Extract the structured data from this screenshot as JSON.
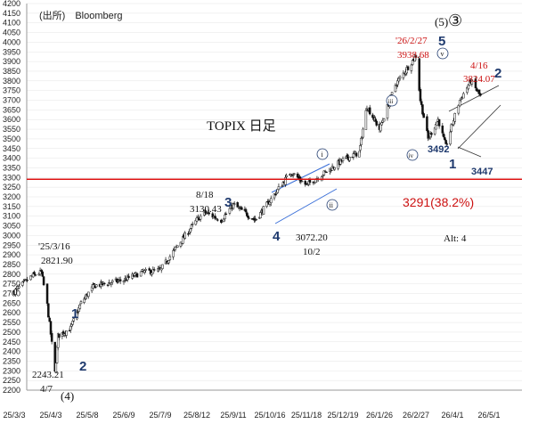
{
  "source": "(出所)　Bloomberg",
  "colors": {
    "axis": "#9a9a9a",
    "grid": "#e4e4e4",
    "candle": "#111111",
    "fib_line": "#dd1111",
    "channel": "#3a6fd8",
    "wedge": "#333333",
    "wave_label": "#1f3a6e",
    "red_text": "#cc1111"
  },
  "chart_data": {
    "type": "candlestick",
    "title": "TOPIX 日足",
    "xlabel": "",
    "ylabel": "",
    "ylim": [
      2200,
      4200
    ],
    "y_ticks": [
      2200,
      2250,
      2300,
      2350,
      2400,
      2450,
      2500,
      2550,
      2600,
      2650,
      2700,
      2750,
      2800,
      2850,
      2900,
      2950,
      3000,
      3050,
      3100,
      3150,
      3200,
      3250,
      3300,
      3350,
      3400,
      3450,
      3500,
      3550,
      3600,
      3650,
      3700,
      3750,
      3800,
      3850,
      3900,
      3950,
      4000,
      4050,
      4100,
      4150,
      4200
    ],
    "x_tick_labels": [
      "25/3/3",
      "25/4/3",
      "25/5/8",
      "25/6/9",
      "25/7/9",
      "25/8/12",
      "25/9/11",
      "25/10/16",
      "25/11/18",
      "25/12/19",
      "26/1/26",
      "26/2/27",
      "26/4/1",
      "26/5/1"
    ],
    "grid": true,
    "price_path": [
      {
        "date": "25/3/3",
        "close": 2710
      },
      {
        "date": "25/3/18",
        "close": 2790
      },
      {
        "date": "25/3/26",
        "close": 2810
      },
      {
        "date": "25/3/31",
        "close": 2640
      },
      {
        "date": "25/4/7",
        "close": 2290
      },
      {
        "date": "25/4/10",
        "close": 2480
      },
      {
        "date": "25/4/22",
        "close": 2520
      },
      {
        "date": "25/5/2",
        "close": 2650
      },
      {
        "date": "25/5/14",
        "close": 2740
      },
      {
        "date": "25/6/9",
        "close": 2770
      },
      {
        "date": "25/6/24",
        "close": 2810
      },
      {
        "date": "25/7/9",
        "close": 2820
      },
      {
        "date": "25/7/24",
        "close": 2940
      },
      {
        "date": "25/8/12",
        "close": 3080
      },
      {
        "date": "25/8/18",
        "close": 3120
      },
      {
        "date": "25/9/1",
        "close": 3080
      },
      {
        "date": "25/9/11",
        "close": 3160
      },
      {
        "date": "25/10/2",
        "close": 3080
      },
      {
        "date": "25/10/16",
        "close": 3180
      },
      {
        "date": "25/11/4",
        "close": 3330
      },
      {
        "date": "25/11/18",
        "close": 3260
      },
      {
        "date": "25/12/19",
        "close": 3390
      },
      {
        "date": "26/1/5",
        "close": 3430
      },
      {
        "date": "26/1/13",
        "close": 3670
      },
      {
        "date": "26/1/26",
        "close": 3550
      },
      {
        "date": "26/2/9",
        "close": 3780
      },
      {
        "date": "26/2/27",
        "close": 3930
      },
      {
        "date": "26/3/3",
        "close": 3700
      },
      {
        "date": "26/3/10",
        "close": 3500
      },
      {
        "date": "26/3/19",
        "close": 3600
      },
      {
        "date": "26/3/26",
        "close": 3460
      },
      {
        "date": "26/4/7",
        "close": 3700
      },
      {
        "date": "26/4/16",
        "close": 3800
      },
      {
        "date": "26/4/24",
        "close": 3720
      }
    ],
    "horizontal_lines": [
      {
        "value": 3291,
        "label": "3291(38.2%)"
      }
    ],
    "annotations": {
      "low_2025": {
        "date": "4/7",
        "value": "2243.21",
        "wave": "(4)"
      },
      "high_2025_mar": {
        "date": "'25/3/16",
        "value": "2821.90"
      },
      "aug18": {
        "date": "8/18",
        "value": "3130.43"
      },
      "oct2": {
        "value": "3072.20",
        "date": "10/2"
      },
      "feb27": {
        "date": "'26/2/27",
        "value": "3938.68"
      },
      "apr16": {
        "date": "4/16",
        "value": "3824.07"
      },
      "low_3492": {
        "value": "3492"
      },
      "low_3447": {
        "value": "3447"
      },
      "alt": "Alt: 4"
    },
    "wave_labels": {
      "w1": "1",
      "w2": "2",
      "w3": "3",
      "w4": "4",
      "w5": "5",
      "paren5": "(5)",
      "circled3": "③",
      "sub_i": "i",
      "sub_ii": "ii",
      "sub_iii": "iii",
      "sub_iv": "iv",
      "sub_v": "v",
      "corr_1": "1",
      "corr_2": "2"
    }
  }
}
